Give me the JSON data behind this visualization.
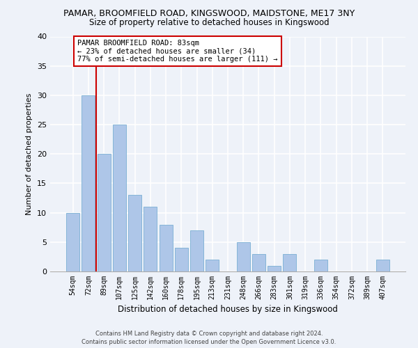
{
  "title1": "PAMAR, BROOMFIELD ROAD, KINGSWOOD, MAIDSTONE, ME17 3NY",
  "title2": "Size of property relative to detached houses in Kingswood",
  "xlabel": "Distribution of detached houses by size in Kingswood",
  "ylabel": "Number of detached properties",
  "categories": [
    "54sqm",
    "72sqm",
    "89sqm",
    "107sqm",
    "125sqm",
    "142sqm",
    "160sqm",
    "178sqm",
    "195sqm",
    "213sqm",
    "231sqm",
    "248sqm",
    "266sqm",
    "283sqm",
    "301sqm",
    "319sqm",
    "336sqm",
    "354sqm",
    "372sqm",
    "389sqm",
    "407sqm"
  ],
  "values": [
    10,
    30,
    20,
    25,
    13,
    11,
    8,
    4,
    7,
    2,
    0,
    5,
    3,
    1,
    3,
    0,
    2,
    0,
    0,
    0,
    2
  ],
  "bar_color": "#aec6e8",
  "bar_edge_color": "#7aafd4",
  "ylim": [
    0,
    40
  ],
  "yticks": [
    0,
    5,
    10,
    15,
    20,
    25,
    30,
    35,
    40
  ],
  "annotation_text_line1": "PAMAR BROOMFIELD ROAD: 83sqm",
  "annotation_text_line2": "← 23% of detached houses are smaller (34)",
  "annotation_text_line3": "77% of semi-detached houses are larger (111) →",
  "annotation_box_color": "#ffffff",
  "annotation_border_color": "#cc0000",
  "vline_color": "#cc0000",
  "footer": "Contains HM Land Registry data © Crown copyright and database right 2024.\nContains public sector information licensed under the Open Government Licence v3.0.",
  "background_color": "#eef2f9",
  "grid_color": "#ffffff"
}
